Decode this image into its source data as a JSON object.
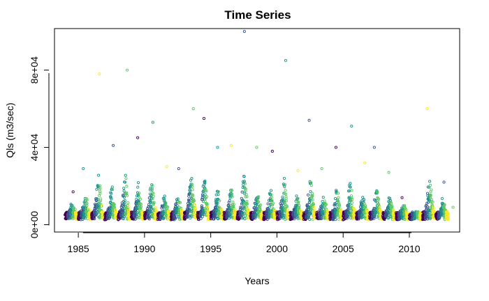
{
  "chart_data": {
    "type": "scatter",
    "title": "Time Series",
    "xlabel": "Years",
    "ylabel": "Qls (m3/sec)",
    "xlim": [
      1983.2,
      2013.8
    ],
    "ylim": [
      -3800,
      101500
    ],
    "x_ticks": [
      {
        "value": 1985,
        "label": "1985"
      },
      {
        "value": 1990,
        "label": "1990"
      },
      {
        "value": 1995,
        "label": "1995"
      },
      {
        "value": 2000,
        "label": "2000"
      },
      {
        "value": 2005,
        "label": "2005"
      },
      {
        "value": 2010,
        "label": "2010"
      }
    ],
    "y_ticks": [
      {
        "value": 0,
        "label": "0e+00"
      },
      {
        "value": 40000,
        "label": "4e+04"
      },
      {
        "value": 80000,
        "label": "8e+04"
      }
    ],
    "marker": "open-circle",
    "color_scale": [
      "#440154",
      "#3b528b",
      "#21918c",
      "#5ec962",
      "#fde725"
    ],
    "grid": false,
    "legend": "none",
    "x_range": [
      1984,
      2013
    ],
    "annual_peaks": [
      {
        "year": 1984,
        "peak": 17000
      },
      {
        "year": 1985,
        "peak": 29000
      },
      {
        "year": 1986,
        "peak": 78000
      },
      {
        "year": 1987,
        "peak": 41000
      },
      {
        "year": 1988,
        "peak": 80000
      },
      {
        "year": 1989,
        "peak": 45000
      },
      {
        "year": 1990,
        "peak": 53000
      },
      {
        "year": 1991,
        "peak": 30000
      },
      {
        "year": 1992,
        "peak": 29000
      },
      {
        "year": 1993,
        "peak": 60000
      },
      {
        "year": 1994,
        "peak": 55000
      },
      {
        "year": 1995,
        "peak": 40000
      },
      {
        "year": 1996,
        "peak": 41000
      },
      {
        "year": 1997,
        "peak": 100000
      },
      {
        "year": 1998,
        "peak": 40000
      },
      {
        "year": 1999,
        "peak": 38000
      },
      {
        "year": 2000,
        "peak": 85000
      },
      {
        "year": 2001,
        "peak": 28000
      },
      {
        "year": 2002,
        "peak": 54000
      },
      {
        "year": 2003,
        "peak": 29000
      },
      {
        "year": 2004,
        "peak": 40000
      },
      {
        "year": 2005,
        "peak": 51000
      },
      {
        "year": 2006,
        "peak": 32000
      },
      {
        "year": 2007,
        "peak": 40000
      },
      {
        "year": 2008,
        "peak": 27000
      },
      {
        "year": 2009,
        "peak": 14000
      },
      {
        "year": 2010,
        "peak": 3000
      },
      {
        "year": 2011,
        "peak": 60000
      },
      {
        "year": 2012,
        "peak": 22000
      },
      {
        "year": 2013,
        "peak": 9000
      }
    ]
  }
}
